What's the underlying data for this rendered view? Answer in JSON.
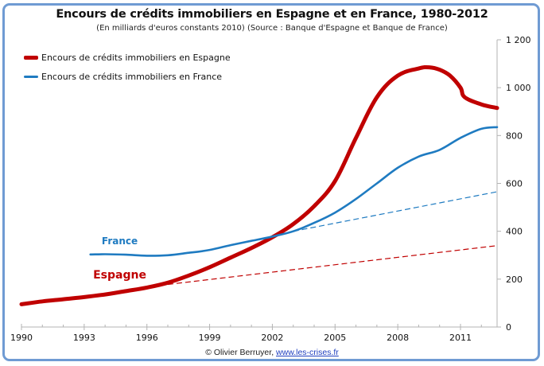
{
  "chart_data": {
    "type": "line",
    "title": "Encours de crédits immobiliers en Espagne et en France, 1980-2012",
    "subtitle": "(En milliards d'euros constants 2010) (Source : Banque d'Espagne et Banque de France)",
    "xlabel": "",
    "ylabel": "",
    "xlim": [
      1990,
      2012.75
    ],
    "ylim": [
      0,
      1200
    ],
    "x_ticks": [
      "1990",
      "1993",
      "1996",
      "1999",
      "2002",
      "2005",
      "2008",
      "2011"
    ],
    "y_ticks": [
      "0",
      "200",
      "400",
      "600",
      "800",
      "1 000",
      "1 200"
    ],
    "y_tick_values": [
      0,
      200,
      400,
      600,
      800,
      1000,
      1200
    ],
    "y_axis_side": "right",
    "grid": false,
    "legend_position": "top-left",
    "series": [
      {
        "name": "Encours de crédits immobiliers en Espagne",
        "color": "#c00000",
        "style": "solid-thick",
        "x": [
          1990,
          1991,
          1992,
          1993,
          1994,
          1995,
          1996,
          1997,
          1998,
          1999,
          2000,
          2001,
          2002,
          2003,
          2004,
          2005,
          2006,
          2007,
          2008,
          2009,
          2009.5,
          2010,
          2010.5,
          2011,
          2011.2,
          2012,
          2012.75
        ],
        "values": [
          95,
          107,
          116,
          125,
          136,
          150,
          165,
          185,
          215,
          250,
          290,
          330,
          375,
          430,
          505,
          610,
          790,
          960,
          1050,
          1080,
          1085,
          1075,
          1050,
          1000,
          960,
          930,
          915
        ]
      },
      {
        "name": "Encours de crédits immobiliers en France",
        "color": "#1f7bc1",
        "style": "solid",
        "x": [
          1993.3,
          1994,
          1995,
          1996,
          1997,
          1998,
          1999,
          2000,
          2001,
          2002,
          2003,
          2004,
          2005,
          2006,
          2007,
          2008,
          2009,
          2010,
          2011,
          2012,
          2012.75
        ],
        "values": [
          303,
          304,
          302,
          298,
          300,
          310,
          322,
          342,
          360,
          378,
          400,
          435,
          478,
          535,
          600,
          665,
          712,
          740,
          790,
          828,
          835
        ]
      },
      {
        "name": "Tendance France",
        "color": "#1f7bc1",
        "style": "dashed",
        "x": [
          2003,
          2012.75
        ],
        "values": [
          400,
          565
        ]
      },
      {
        "name": "Tendance Espagne",
        "color": "#c00000",
        "style": "dashed",
        "x": [
          1997,
          2012.75
        ],
        "values": [
          178,
          340
        ]
      }
    ],
    "annotations": [
      {
        "text": "France",
        "color": "#1f7bc1",
        "x": 1994.7,
        "y": 345
      },
      {
        "text": "Espagne",
        "color": "#c00000",
        "x": 1994.7,
        "y": 203
      }
    ]
  },
  "legend": {
    "items": [
      {
        "label": "Encours de crédits immobiliers en Espagne",
        "color": "#c00000"
      },
      {
        "label": "Encours de crédits immobiliers en France",
        "color": "#1f7bc1"
      }
    ]
  },
  "footer": {
    "credit_prefix": "© Olivier Berruyer, ",
    "credit_link": "www.les-crises.fr"
  }
}
